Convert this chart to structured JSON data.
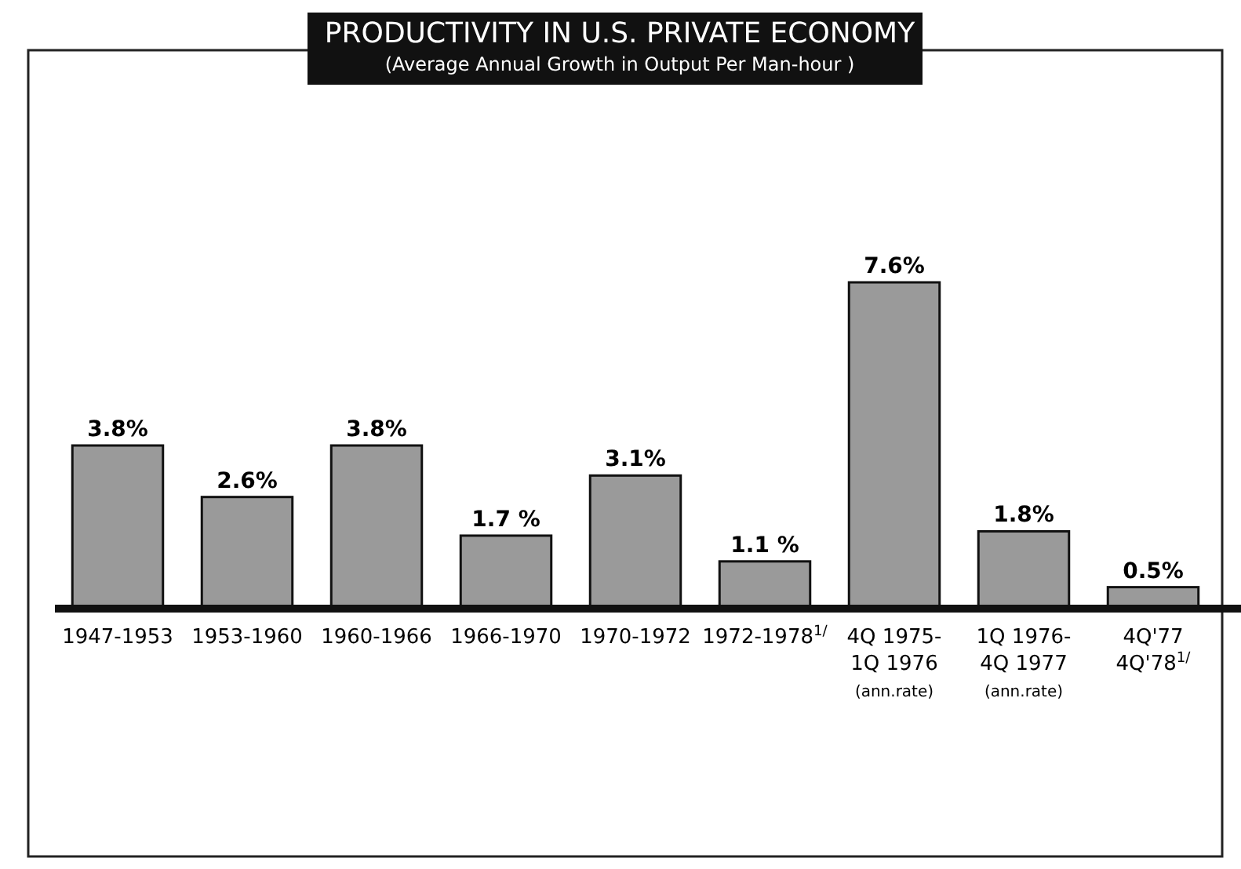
{
  "chart_data": {
    "type": "bar",
    "title": "PRODUCTIVITY IN U.S. PRIVATE ECONOMY",
    "subtitle": "(Average Annual Growth in Output Per Man-hour )",
    "categories": [
      "1947-1953",
      "1953-1960",
      "1960-1966",
      "1966-1970",
      "1970-1972",
      "1972-1978$^{1/}$",
      "4Q 1975-\n1Q 1976\n(ann.rate)",
      "1Q 1976-\n4Q 1977\n(ann.rate)",
      "4Q'77\n4Q'78$^{1/}$"
    ],
    "values": [
      3.8,
      2.6,
      3.8,
      1.7,
      3.1,
      1.1,
      7.6,
      1.8,
      0.5
    ],
    "value_labels": [
      "3.8%",
      "2.6%",
      "3.8%",
      "1.7 %",
      "3.1%",
      "1.1 %",
      "7.6%",
      "1.8%",
      "0.5%"
    ],
    "color": "#9a9a9a"
  }
}
